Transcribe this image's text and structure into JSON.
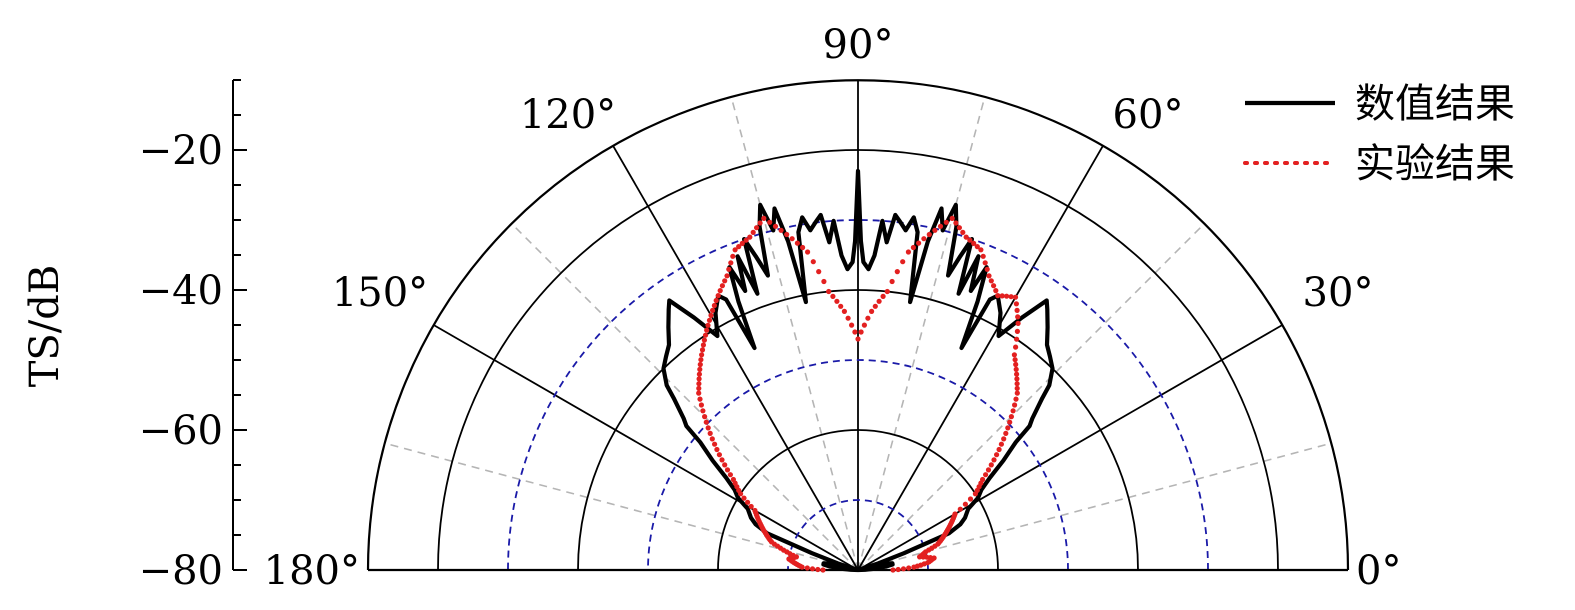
{
  "chart_data": {
    "type": "polar",
    "ylabel": "TS/dB",
    "r_range": [
      -80,
      -10
    ],
    "r_ticks": [
      -20,
      -40,
      -60,
      -80
    ],
    "r_tick_labels": [
      "−20",
      "−40",
      "−60",
      "−80"
    ],
    "r_rings": [
      -60,
      -40,
      -20,
      -10
    ],
    "r_dashed_rings": [
      -70,
      -50,
      -30
    ],
    "angle_range": [
      0,
      180
    ],
    "angle_ticks": [
      0,
      30,
      60,
      90,
      120,
      150,
      180
    ],
    "angle_tick_labels": [
      "0°",
      "30°",
      "60°",
      "90°",
      "120°",
      "150°",
      "180°"
    ],
    "grid": true,
    "legend_position": "top-right",
    "series": [
      {
        "name": "数值结果",
        "style": "solid",
        "color": "#000000",
        "points": [
          [
            0,
            -80
          ],
          [
            2,
            -79
          ],
          [
            4,
            -78
          ],
          [
            7,
            -76
          ],
          [
            9,
            -75
          ],
          [
            11,
            -75
          ],
          [
            13,
            -76
          ],
          [
            14,
            -77
          ],
          [
            15,
            -78
          ],
          [
            16,
            -80
          ],
          [
            18,
            -77
          ],
          [
            20,
            -73
          ],
          [
            22,
            -66
          ],
          [
            24,
            -64
          ],
          [
            26,
            -63
          ],
          [
            29,
            -62
          ],
          [
            31,
            -60
          ],
          [
            33,
            -59
          ],
          [
            35,
            -57
          ],
          [
            37,
            -54
          ],
          [
            39,
            -51
          ],
          [
            40,
            -48
          ],
          [
            41,
            -47
          ],
          [
            43,
            -44
          ],
          [
            44,
            -42
          ],
          [
            46,
            -40
          ],
          [
            48,
            -39
          ],
          [
            50,
            -38
          ],
          [
            52,
            -36
          ],
          [
            54,
            -34
          ],
          [
            55,
            -33
          ],
          [
            57,
            -37
          ],
          [
            59,
            -41
          ],
          [
            61,
            -38
          ],
          [
            63,
            -36
          ],
          [
            64,
            -37
          ],
          [
            65,
            -45
          ],
          [
            66,
            -38
          ],
          [
            67,
            -33
          ],
          [
            68,
            -37
          ],
          [
            69,
            -32
          ],
          [
            70,
            -38
          ],
          [
            71,
            -30
          ],
          [
            72,
            -33
          ],
          [
            73,
            -36
          ],
          [
            74,
            -29
          ],
          [
            75,
            -26
          ],
          [
            76,
            -30
          ],
          [
            77,
            -27
          ],
          [
            78,
            -32
          ],
          [
            79,
            -41
          ],
          [
            80,
            -31
          ],
          [
            81,
            -29
          ],
          [
            82,
            -31
          ],
          [
            83,
            -30
          ],
          [
            84,
            -29
          ],
          [
            85,
            -33
          ],
          [
            86,
            -30
          ],
          [
            87,
            -35
          ],
          [
            88,
            -37
          ],
          [
            89,
            -36
          ],
          [
            89.5,
            -33
          ],
          [
            90,
            -23
          ],
          [
            90.5,
            -33
          ],
          [
            91,
            -36
          ],
          [
            92,
            -37
          ],
          [
            93,
            -35
          ],
          [
            94,
            -30
          ],
          [
            95,
            -33
          ],
          [
            96,
            -29
          ],
          [
            97,
            -30
          ],
          [
            98,
            -31
          ],
          [
            99,
            -29
          ],
          [
            100,
            -31
          ],
          [
            101,
            -41
          ],
          [
            102,
            -32
          ],
          [
            103,
            -27
          ],
          [
            104,
            -30
          ],
          [
            105,
            -26
          ],
          [
            106,
            -29
          ],
          [
            107,
            -36
          ],
          [
            108,
            -33
          ],
          [
            109,
            -30
          ],
          [
            110,
            -38
          ],
          [
            111,
            -32
          ],
          [
            112,
            -37
          ],
          [
            113,
            -33
          ],
          [
            114,
            -38
          ],
          [
            115,
            -45
          ],
          [
            116,
            -37
          ],
          [
            117,
            -36
          ],
          [
            119,
            -38
          ],
          [
            121,
            -41
          ],
          [
            123,
            -37
          ],
          [
            125,
            -33
          ],
          [
            126,
            -34
          ],
          [
            128,
            -36
          ],
          [
            130,
            -38
          ],
          [
            132,
            -39
          ],
          [
            134,
            -40
          ],
          [
            136,
            -42
          ],
          [
            137,
            -44
          ],
          [
            139,
            -47
          ],
          [
            140,
            -48
          ],
          [
            141,
            -51
          ],
          [
            143,
            -54
          ],
          [
            145,
            -57
          ],
          [
            147,
            -59
          ],
          [
            149,
            -60
          ],
          [
            151,
            -62
          ],
          [
            154,
            -63
          ],
          [
            156,
            -64
          ],
          [
            158,
            -66
          ],
          [
            160,
            -73
          ],
          [
            162,
            -77
          ],
          [
            164,
            -80
          ],
          [
            165,
            -78
          ],
          [
            166,
            -77
          ],
          [
            167,
            -76
          ],
          [
            169,
            -75
          ],
          [
            171,
            -75
          ],
          [
            173,
            -76
          ],
          [
            176,
            -78
          ],
          [
            178,
            -79
          ],
          [
            180,
            -80
          ]
        ]
      },
      {
        "name": "实验结果",
        "style": "dotted",
        "color": "#e32020",
        "points": [
          [
            0,
            -75
          ],
          [
            3,
            -72
          ],
          [
            6,
            -70
          ],
          [
            9,
            -69
          ],
          [
            12,
            -71
          ],
          [
            15,
            -70
          ],
          [
            18,
            -68
          ],
          [
            21,
            -67
          ],
          [
            24,
            -66
          ],
          [
            27,
            -65
          ],
          [
            30,
            -64
          ],
          [
            33,
            -60
          ],
          [
            36,
            -58
          ],
          [
            39,
            -55
          ],
          [
            42,
            -52
          ],
          [
            45,
            -49
          ],
          [
            48,
            -46
          ],
          [
            51,
            -44
          ],
          [
            54,
            -42
          ],
          [
            57,
            -38
          ],
          [
            60,
            -35
          ],
          [
            63,
            -36
          ],
          [
            66,
            -34
          ],
          [
            69,
            -31
          ],
          [
            72,
            -30
          ],
          [
            75,
            -28
          ],
          [
            78,
            -31
          ],
          [
            81,
            -34
          ],
          [
            84,
            -40
          ],
          [
            87,
            -43
          ],
          [
            90,
            -47
          ],
          [
            93,
            -43
          ],
          [
            96,
            -40
          ],
          [
            99,
            -34
          ],
          [
            102,
            -31
          ],
          [
            105,
            -28
          ],
          [
            108,
            -30
          ],
          [
            111,
            -31
          ],
          [
            114,
            -34
          ],
          [
            117,
            -36
          ],
          [
            120,
            -38
          ],
          [
            123,
            -40
          ],
          [
            126,
            -42
          ],
          [
            129,
            -44
          ],
          [
            132,
            -46
          ],
          [
            135,
            -49
          ],
          [
            138,
            -52
          ],
          [
            141,
            -55
          ],
          [
            144,
            -58
          ],
          [
            147,
            -60
          ],
          [
            150,
            -63
          ],
          [
            153,
            -64
          ],
          [
            156,
            -65
          ],
          [
            159,
            -66
          ],
          [
            162,
            -67
          ],
          [
            165,
            -69
          ],
          [
            168,
            -71
          ],
          [
            171,
            -70
          ],
          [
            174,
            -71
          ],
          [
            177,
            -72
          ],
          [
            180,
            -75
          ]
        ]
      }
    ]
  }
}
